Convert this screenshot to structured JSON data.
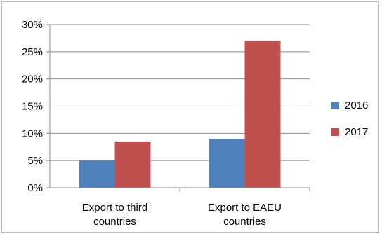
{
  "chart_data": {
    "type": "bar",
    "categories": [
      [
        "Export to third",
        "countries"
      ],
      [
        "Export to EAEU",
        "countries"
      ]
    ],
    "series": [
      {
        "name": "2016",
        "values": [
          5,
          9
        ],
        "color": "#4f81bd"
      },
      {
        "name": "2017",
        "values": [
          8.5,
          27
        ],
        "color": "#c0504d"
      }
    ],
    "ylim": [
      0,
      30
    ],
    "yticks": [
      0,
      5,
      10,
      15,
      20,
      25,
      30
    ],
    "ytick_format": "percent",
    "grid": true,
    "legend_position": "right"
  }
}
